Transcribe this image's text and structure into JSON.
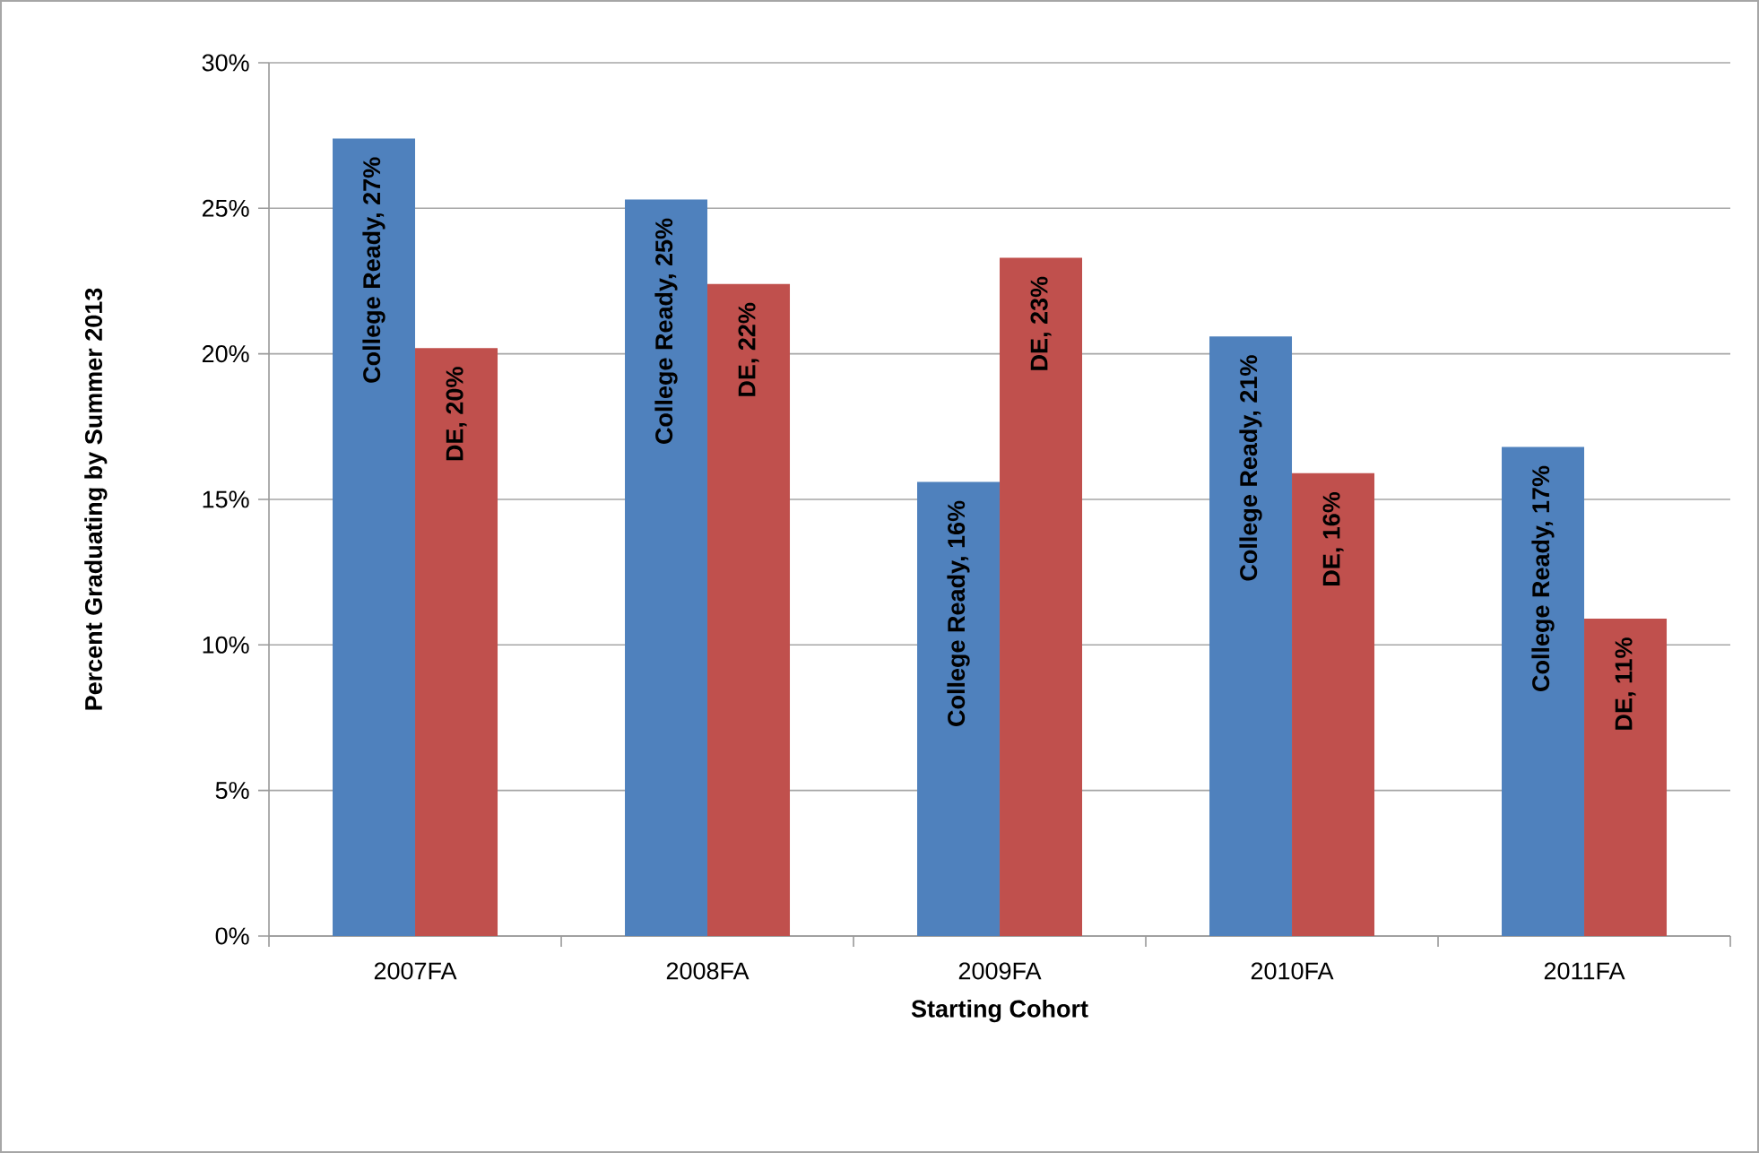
{
  "chart_data": {
    "type": "bar",
    "xlabel": "Starting Cohort",
    "ylabel": "Percent Graduating by Summer 2013",
    "categories": [
      "2007FA",
      "2008FA",
      "2009FA",
      "2010FA",
      "2011FA"
    ],
    "series": [
      {
        "color": "#4f81bd",
        "values": [
          27.4,
          25.3,
          15.6,
          20.6,
          16.8
        ],
        "value_labels": [
          "College Ready, 27%",
          "College Ready, 25%",
          "College Ready, 16%",
          "College Ready, 21%",
          "College Ready, 17%"
        ]
      },
      {
        "color": "#c0504d",
        "values": [
          20.2,
          22.4,
          23.3,
          15.9,
          10.9
        ],
        "value_labels": [
          "DE, 20%",
          "DE, 22%",
          "DE, 23%",
          "DE, 16%",
          "DE, 11%"
        ]
      }
    ],
    "ylim": [
      0,
      30
    ],
    "yticks": [
      {
        "value": 0,
        "label": "0%"
      },
      {
        "value": 5,
        "label": "5%"
      },
      {
        "value": 10,
        "label": "10%"
      },
      {
        "value": 15,
        "label": "15%"
      },
      {
        "value": 20,
        "label": "20%"
      },
      {
        "value": 25,
        "label": "25%"
      },
      {
        "value": 30,
        "label": "30%"
      }
    ],
    "grid": "y"
  }
}
